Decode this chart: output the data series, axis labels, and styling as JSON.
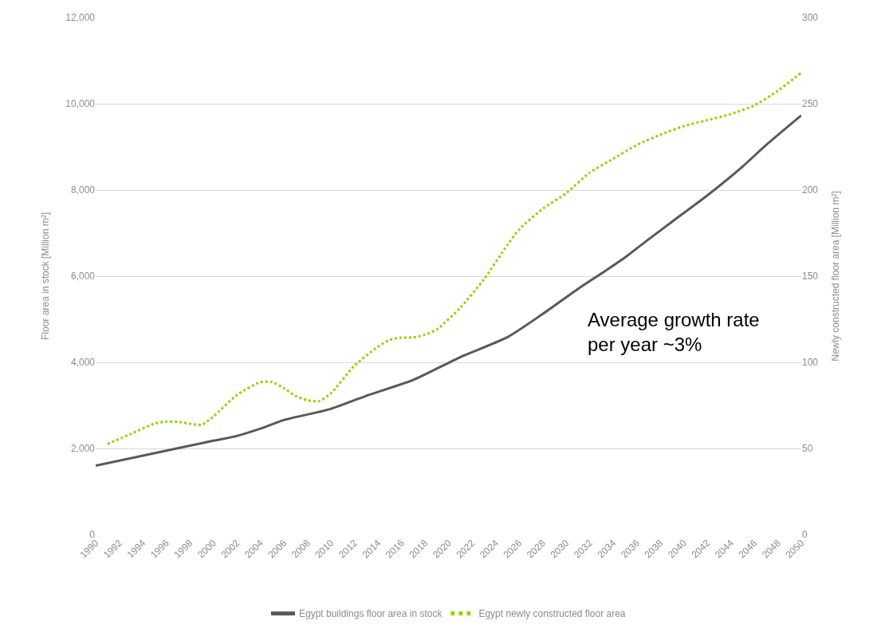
{
  "chart_data": {
    "type": "line",
    "ylabel": "Floor area in stock [Million m²]",
    "y2label": "Newly constructed floor area [Million m²]",
    "annotations": [
      "Average growth rate\nper year ~3%"
    ],
    "xlim": [
      1990,
      2050
    ],
    "xticks": [
      1990,
      1992,
      1994,
      1996,
      1998,
      2000,
      2002,
      2004,
      2006,
      2008,
      2010,
      2012,
      2014,
      2016,
      2018,
      2020,
      2022,
      2024,
      2026,
      2028,
      2030,
      2032,
      2034,
      2036,
      2038,
      2040,
      2042,
      2044,
      2046,
      2048,
      2050
    ],
    "ylim": [
      0,
      12000
    ],
    "yticks": [
      0,
      {
        "value": 2000,
        "label": "2,000"
      },
      {
        "value": 4000,
        "label": "4,000"
      },
      {
        "value": 6000,
        "label": "6,000"
      },
      {
        "value": 8000,
        "label": "8,000"
      },
      {
        "value": 10000,
        "label": "10,000"
      },
      {
        "value": 12000,
        "label": "12,000"
      }
    ],
    "y2lim": [
      0,
      300
    ],
    "y2ticks": [
      0,
      50,
      100,
      150,
      200,
      250,
      300
    ],
    "grid": "y",
    "legend": "bottom",
    "series": [
      {
        "name": "Egypt buildings floor area in stock",
        "color": "#595959",
        "line_style": "solid",
        "x": [
          1990,
          1996,
          2000,
          2002,
          2004,
          2006,
          2009,
          2010,
          2013,
          2017,
          2021,
          2025,
          2028,
          2031,
          2033,
          2035,
          2037,
          2039,
          2042,
          2045,
          2047,
          2050
        ],
        "values": [
          1600,
          1950,
          2180,
          2290,
          2460,
          2660,
          2850,
          2920,
          3220,
          3590,
          4120,
          4580,
          5120,
          5700,
          6060,
          6430,
          6850,
          7260,
          7870,
          8540,
          9040,
          9730
        ]
      },
      {
        "name": "Egypt newly constructed floor area",
        "color": "#92d400",
        "line_style": "dotted",
        "axis": "y2",
        "x": [
          1991,
          1993,
          1995,
          1996,
          1997,
          1999,
          2000,
          2002,
          2004,
          2005,
          2006,
          2007,
          2008,
          2009,
          2010,
          2012,
          2014,
          2015,
          2016,
          2017,
          2018,
          2019,
          2021,
          2023,
          2025,
          2026,
          2028,
          2030,
          2032,
          2034,
          2036,
          2038,
          2040,
          2042,
          2044,
          2046,
          2048,
          2050
        ],
        "values": [
          52.6,
          58.5,
          64.5,
          65.6,
          65.5,
          63.7,
          68.5,
          81,
          88.5,
          88.5,
          85,
          80.5,
          78,
          77.5,
          82,
          98,
          109,
          113,
          114.4,
          114.4,
          116,
          119,
          131.6,
          148,
          168,
          177,
          189,
          198,
          210,
          218,
          226,
          232,
          237,
          240.5,
          244,
          249,
          257.5,
          268
        ]
      }
    ]
  }
}
